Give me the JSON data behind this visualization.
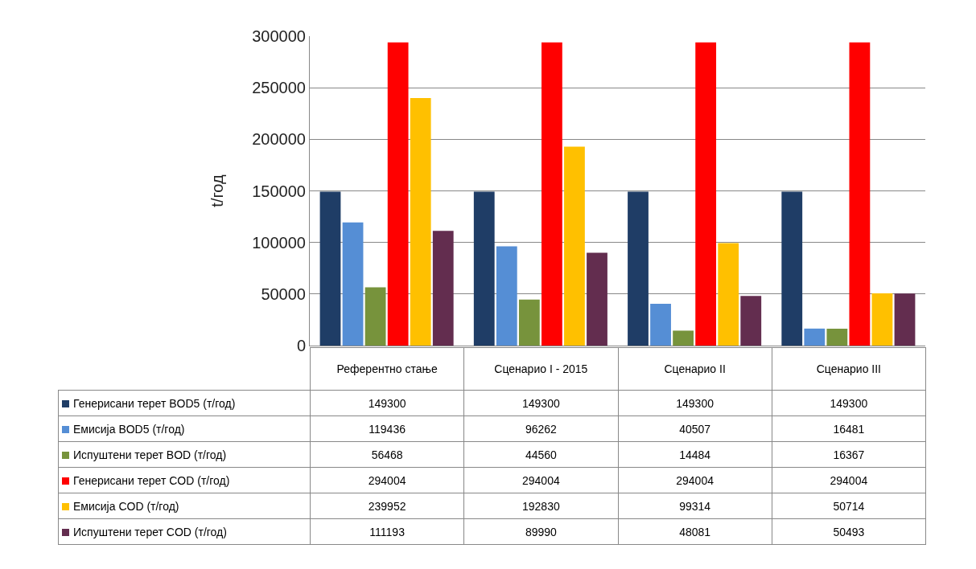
{
  "chart_data": {
    "type": "bar",
    "ylabel": "t/год",
    "categories": [
      "Референтно стање",
      "Сценарио I - 2015",
      "Сценарио II",
      "Сценарио III"
    ],
    "series": [
      {
        "name": "Генерисани терет BOD5 (т/год)",
        "color": "#1f3d66",
        "values": [
          149300,
          149300,
          149300,
          149300
        ]
      },
      {
        "name": "Емисија BOD5 (т/год)",
        "color": "#558ed5",
        "values": [
          119436,
          96262,
          40507,
          16481
        ]
      },
      {
        "name": "Испуштени терет BOD (т/год)",
        "color": "#77933c",
        "values": [
          56468,
          44560,
          14484,
          16367
        ]
      },
      {
        "name": "Генерисани терет COD (т/год)",
        "color": "#ff0000",
        "values": [
          294004,
          294004,
          294004,
          294004
        ]
      },
      {
        "name": "Емисија COD (т/год)",
        "color": "#ffc000",
        "values": [
          239952,
          192830,
          99314,
          50714
        ]
      },
      {
        "name": "Испуштени терет COD (т/год)",
        "color": "#632d4f",
        "values": [
          111193,
          89990,
          48081,
          50493
        ]
      }
    ],
    "ylim": [
      0,
      300000
    ],
    "yticks": [
      0,
      50000,
      100000,
      150000,
      200000,
      250000,
      300000
    ],
    "grid": "y",
    "legend": "bottom",
    "data_labels": true
  }
}
